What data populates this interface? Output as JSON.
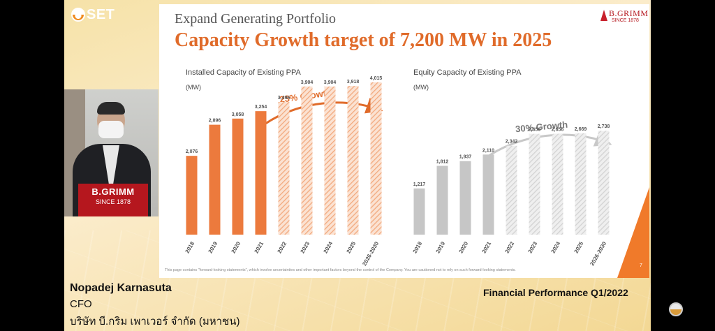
{
  "broadcast": {
    "logo_text": "SET",
    "presenter_name": "Nopadej Karnasuta",
    "presenter_role": "CFO",
    "presenter_company": "บริษัท บี.กริม เพาเวอร์ จำกัด (มหาชน)",
    "event": "Financial Performance Q1/2022",
    "podium_brand": "B.GRIMM",
    "podium_since": "SINCE 1878"
  },
  "slide": {
    "subtitle": "Expand Generating Portfolio",
    "title": "Capacity Growth target of 7,200 MW in 2025",
    "logo_name": "B.GRIMM",
    "logo_since": "SINCE 1878",
    "disclaimer": "This page contains \"forward-looking statements\", which involve uncertainties and other important factors beyond the control of the Company. You are cautioned not to rely on such forward-looking statements.",
    "page_number": "7"
  },
  "colors": {
    "accent_orange": "#e06b2a",
    "bar_orange": "#ec7a3d",
    "bar_orange_hatch": "#f2b48e",
    "bar_gray": "#c6c6c6",
    "bar_gray_hatch": "#dadada",
    "arrow_gray": "#c8c8c8"
  },
  "chart_data": [
    {
      "type": "bar",
      "title": "Installed Capacity of Existing PPA",
      "unit": "(MW)",
      "growth_label": "23% Growth",
      "categories": [
        "2018",
        "2019",
        "2020",
        "2021",
        "2022",
        "2023",
        "2024",
        "2025",
        "2026-2030"
      ],
      "values": [
        2076,
        2896,
        3058,
        3254,
        3496,
        3904,
        3904,
        3918,
        4015
      ],
      "value_labels": [
        "2,076",
        "2,896",
        "3,058",
        "3,254",
        "3,496",
        "3,904",
        "3,904",
        "3,918",
        "4,015"
      ],
      "projected_from_index": 4,
      "ylim": [
        0,
        4600
      ]
    },
    {
      "type": "bar",
      "title": "Equity Capacity of Existing PPA",
      "unit": "(MW)",
      "growth_label": "30% Growth",
      "categories": [
        "2018",
        "2019",
        "2020",
        "2021",
        "2022",
        "2023",
        "2024",
        "2025",
        "2026-2030"
      ],
      "values": [
        1217,
        1812,
        1937,
        2110,
        2342,
        2656,
        2656,
        2669,
        2738
      ],
      "value_labels": [
        "1,217",
        "1,812",
        "1,937",
        "2,110",
        "2,342",
        "2,656",
        "2,656",
        "2,669",
        "2,738"
      ],
      "projected_from_index": 4,
      "ylim": [
        0,
        4600
      ]
    }
  ]
}
